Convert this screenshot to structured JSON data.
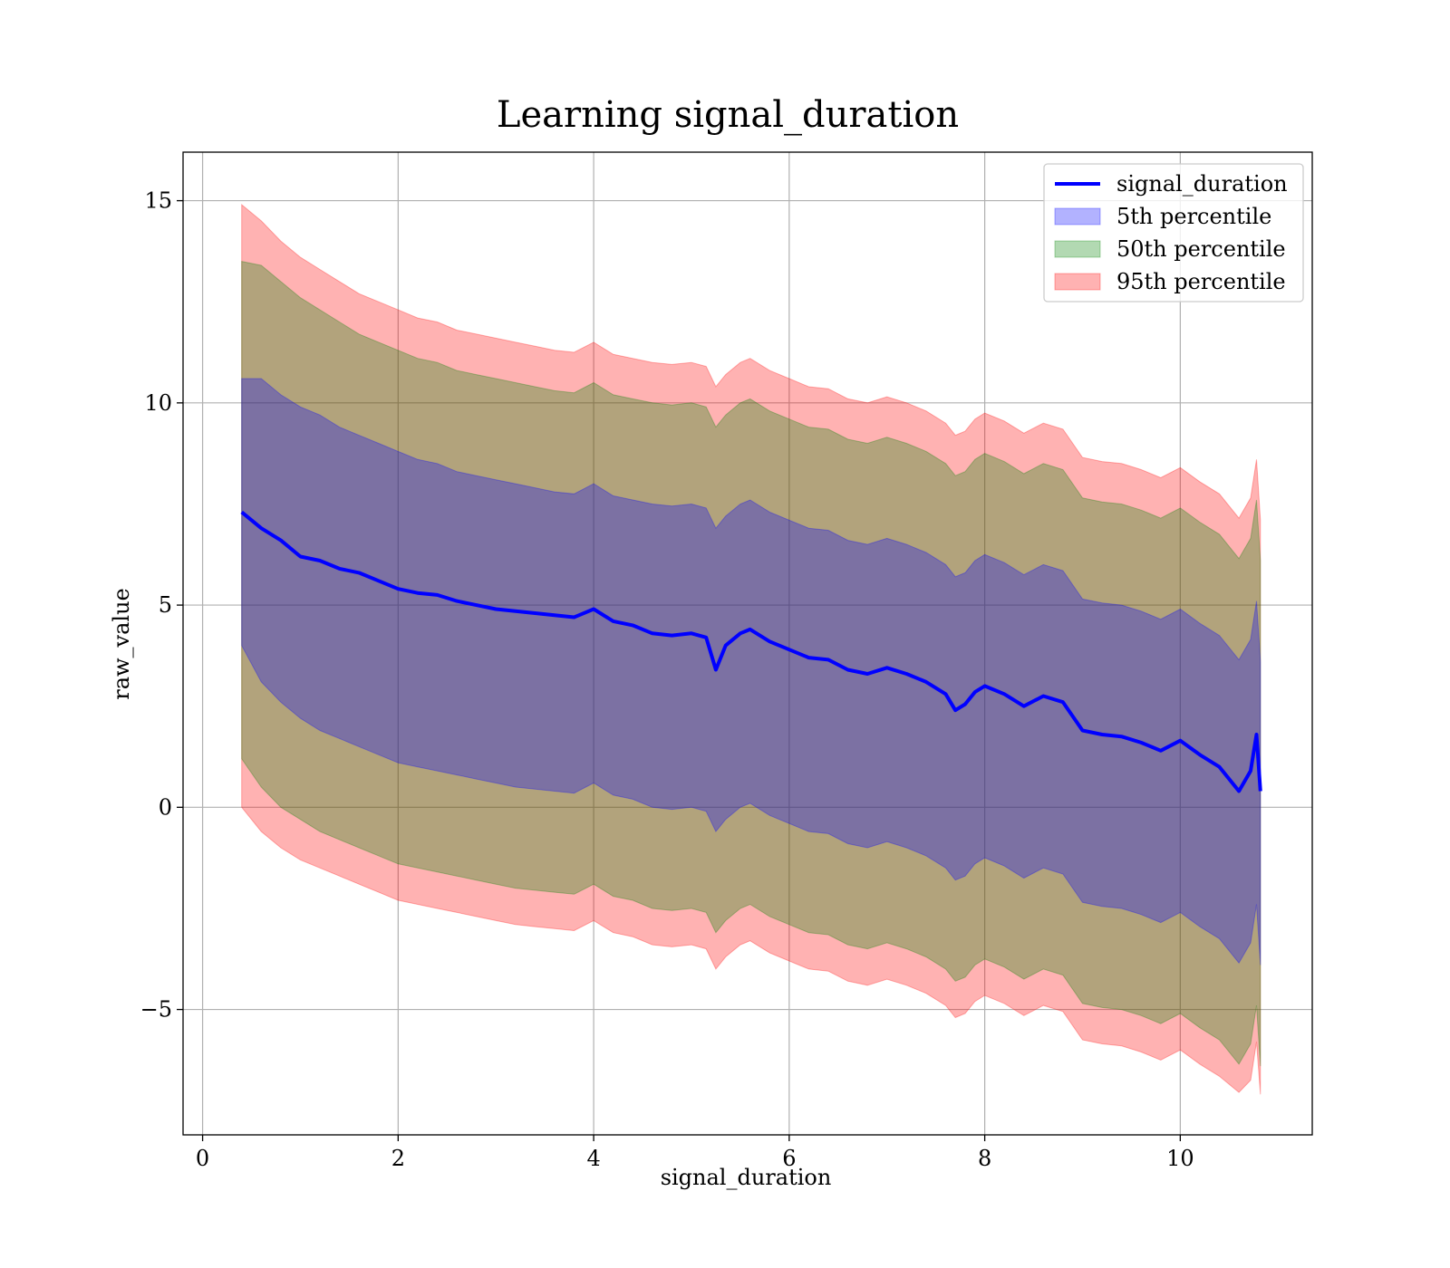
{
  "chart_data": {
    "type": "area",
    "title": "Learning signal_duration",
    "xlabel": "signal_duration",
    "ylabel": "raw_value",
    "xlim": [
      -0.2,
      11.35
    ],
    "ylim": [
      -8.1,
      16.2
    ],
    "xticks": [
      0,
      2,
      4,
      6,
      8,
      10
    ],
    "yticks": [
      -5,
      0,
      5,
      10,
      15
    ],
    "xtick_labels": [
      "0",
      "2",
      "4",
      "6",
      "8",
      "10"
    ],
    "ytick_labels": [
      "−5",
      "0",
      "5",
      "10",
      "15"
    ],
    "grid": true,
    "legend_position": "top-right",
    "x": [
      0.4,
      0.6,
      0.8,
      1.0,
      1.2,
      1.4,
      1.6,
      1.8,
      2.0,
      2.2,
      2.4,
      2.6,
      2.8,
      3.0,
      3.2,
      3.4,
      3.6,
      3.8,
      4.0,
      4.2,
      4.4,
      4.6,
      4.8,
      5.0,
      5.15,
      5.25,
      5.35,
      5.5,
      5.6,
      5.8,
      6.0,
      6.2,
      6.4,
      6.6,
      6.8,
      7.0,
      7.2,
      7.4,
      7.6,
      7.7,
      7.8,
      7.9,
      8.0,
      8.2,
      8.4,
      8.6,
      8.8,
      9.0,
      9.2,
      9.4,
      9.6,
      9.8,
      10.0,
      10.2,
      10.4,
      10.6,
      10.72,
      10.78,
      10.82
    ],
    "series": [
      {
        "name": "signal_duration",
        "kind": "line",
        "color": "#0000ff",
        "values": [
          7.3,
          6.9,
          6.6,
          6.2,
          6.1,
          5.9,
          5.8,
          5.6,
          5.4,
          5.3,
          5.25,
          5.1,
          5.0,
          4.9,
          4.85,
          4.8,
          4.75,
          4.7,
          4.9,
          4.6,
          4.5,
          4.3,
          4.25,
          4.3,
          4.2,
          3.4,
          4.0,
          4.3,
          4.4,
          4.1,
          3.9,
          3.7,
          3.65,
          3.4,
          3.3,
          3.45,
          3.3,
          3.1,
          2.8,
          2.4,
          2.55,
          2.85,
          3.0,
          2.8,
          2.5,
          2.75,
          2.6,
          1.9,
          1.8,
          1.75,
          1.6,
          1.4,
          1.65,
          1.3,
          1.0,
          0.4,
          0.9,
          1.8,
          0.4
        ]
      },
      {
        "name": "5th percentile",
        "kind": "band",
        "color": "#0000ff",
        "alpha": 0.3,
        "lower": [
          4.0,
          3.1,
          2.6,
          2.2,
          1.9,
          1.7,
          1.5,
          1.3,
          1.1,
          1.0,
          0.9,
          0.8,
          0.7,
          0.6,
          0.5,
          0.45,
          0.4,
          0.35,
          0.6,
          0.3,
          0.2,
          0.0,
          -0.05,
          0.0,
          -0.1,
          -0.6,
          -0.3,
          0.0,
          0.1,
          -0.2,
          -0.4,
          -0.6,
          -0.65,
          -0.9,
          -1.0,
          -0.85,
          -1.0,
          -1.2,
          -1.5,
          -1.8,
          -1.7,
          -1.4,
          -1.25,
          -1.45,
          -1.75,
          -1.5,
          -1.65,
          -2.35,
          -2.45,
          -2.5,
          -2.65,
          -2.85,
          -2.6,
          -2.95,
          -3.25,
          -3.85,
          -3.35,
          -2.4,
          -3.9
        ],
        "upper": [
          10.6,
          10.6,
          10.2,
          9.9,
          9.7,
          9.4,
          9.2,
          9.0,
          8.8,
          8.6,
          8.5,
          8.3,
          8.2,
          8.1,
          8.0,
          7.9,
          7.8,
          7.75,
          8.0,
          7.7,
          7.6,
          7.5,
          7.45,
          7.5,
          7.4,
          6.9,
          7.2,
          7.5,
          7.6,
          7.3,
          7.1,
          6.9,
          6.85,
          6.6,
          6.5,
          6.65,
          6.5,
          6.3,
          6.0,
          5.7,
          5.8,
          6.1,
          6.25,
          6.05,
          5.75,
          6.0,
          5.85,
          5.15,
          5.05,
          5.0,
          4.85,
          4.65,
          4.9,
          4.55,
          4.25,
          3.65,
          4.15,
          5.1,
          3.6
        ]
      },
      {
        "name": "50th percentile",
        "kind": "band",
        "color": "#008000",
        "alpha": 0.3,
        "lower": [
          1.2,
          0.5,
          0.0,
          -0.3,
          -0.6,
          -0.8,
          -1.0,
          -1.2,
          -1.4,
          -1.5,
          -1.6,
          -1.7,
          -1.8,
          -1.9,
          -2.0,
          -2.05,
          -2.1,
          -2.15,
          -1.9,
          -2.2,
          -2.3,
          -2.5,
          -2.55,
          -2.5,
          -2.6,
          -3.1,
          -2.8,
          -2.5,
          -2.4,
          -2.7,
          -2.9,
          -3.1,
          -3.15,
          -3.4,
          -3.5,
          -3.35,
          -3.5,
          -3.7,
          -4.0,
          -4.3,
          -4.2,
          -3.9,
          -3.75,
          -3.95,
          -4.25,
          -4.0,
          -4.15,
          -4.85,
          -4.95,
          -5.0,
          -5.15,
          -5.35,
          -5.1,
          -5.45,
          -5.75,
          -6.35,
          -5.85,
          -4.9,
          -6.4
        ],
        "upper": [
          13.5,
          13.4,
          13.0,
          12.6,
          12.3,
          12.0,
          11.7,
          11.5,
          11.3,
          11.1,
          11.0,
          10.8,
          10.7,
          10.6,
          10.5,
          10.4,
          10.3,
          10.25,
          10.5,
          10.2,
          10.1,
          10.0,
          9.95,
          10.0,
          9.9,
          9.4,
          9.7,
          10.0,
          10.1,
          9.8,
          9.6,
          9.4,
          9.35,
          9.1,
          9.0,
          9.15,
          9.0,
          8.8,
          8.5,
          8.2,
          8.3,
          8.6,
          8.75,
          8.55,
          8.25,
          8.5,
          8.35,
          7.65,
          7.55,
          7.5,
          7.35,
          7.15,
          7.4,
          7.05,
          6.75,
          6.15,
          6.65,
          7.6,
          6.1
        ]
      },
      {
        "name": "95th percentile",
        "kind": "band",
        "color": "#ff0000",
        "alpha": 0.3,
        "lower": [
          0.0,
          -0.6,
          -1.0,
          -1.3,
          -1.5,
          -1.7,
          -1.9,
          -2.1,
          -2.3,
          -2.4,
          -2.5,
          -2.6,
          -2.7,
          -2.8,
          -2.9,
          -2.95,
          -3.0,
          -3.05,
          -2.8,
          -3.1,
          -3.2,
          -3.4,
          -3.45,
          -3.4,
          -3.5,
          -4.0,
          -3.7,
          -3.4,
          -3.3,
          -3.6,
          -3.8,
          -4.0,
          -4.05,
          -4.3,
          -4.4,
          -4.25,
          -4.4,
          -4.6,
          -4.9,
          -5.2,
          -5.1,
          -4.8,
          -4.65,
          -4.85,
          -5.15,
          -4.9,
          -5.05,
          -5.75,
          -5.85,
          -5.9,
          -6.05,
          -6.25,
          -6.0,
          -6.35,
          -6.65,
          -7.05,
          -6.75,
          -5.8,
          -7.1
        ],
        "upper": [
          14.9,
          14.5,
          14.0,
          13.6,
          13.3,
          13.0,
          12.7,
          12.5,
          12.3,
          12.1,
          12.0,
          11.8,
          11.7,
          11.6,
          11.5,
          11.4,
          11.3,
          11.25,
          11.5,
          11.2,
          11.1,
          11.0,
          10.95,
          11.0,
          10.9,
          10.4,
          10.7,
          11.0,
          11.1,
          10.8,
          10.6,
          10.4,
          10.35,
          10.1,
          10.0,
          10.15,
          10.0,
          9.8,
          9.5,
          9.2,
          9.3,
          9.6,
          9.75,
          9.55,
          9.25,
          9.5,
          9.35,
          8.65,
          8.55,
          8.5,
          8.35,
          8.15,
          8.4,
          8.05,
          7.75,
          7.15,
          7.65,
          8.6,
          7.1
        ]
      }
    ]
  }
}
